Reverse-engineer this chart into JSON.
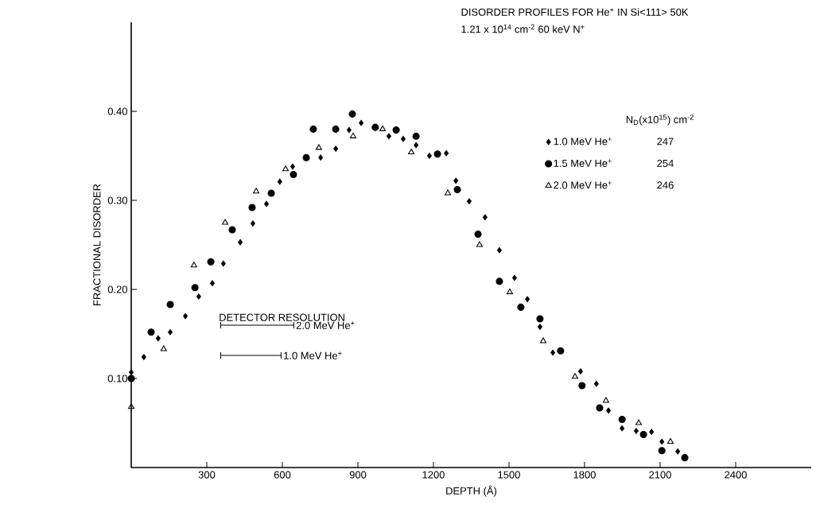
{
  "chart_data": {
    "type": "scatter",
    "title": "DISORDER PROFILES FOR He$^{+}$ IN Si<111> 50K",
    "subtitle": "1.21 x 10$^{14}$ cm$^{-2}$ 60 keV N$^{+}$",
    "xlabel": "DEPTH (Å)",
    "ylabel": "FRACTIONAL DISORDER",
    "legend_title": "N$_{D}$(x10$^{15}$) cm$^{-2}$",
    "legend": "top right",
    "annotations": [
      "DETECTOR RESOLUTION",
      "2.0 MeV He$^{+}$",
      "1.0 MeV He$^{+}$",
      "247",
      "254",
      "246"
    ],
    "xlim": [
      0,
      2700
    ],
    "ylim": [
      0,
      0.5
    ],
    "xticks": [
      300,
      600,
      900,
      1200,
      1500,
      1800,
      2100,
      2400
    ],
    "yticks": [
      {
        "value": 0.1,
        "label": "0.10"
      },
      {
        "value": 0.2,
        "label": "0.20"
      },
      {
        "value": 0.3,
        "label": "0.30"
      },
      {
        "value": 0.4,
        "label": "0.40"
      }
    ],
    "grid": false,
    "series": [
      {
        "name": "1.0 MeV He$^{+}$",
        "color": "#000000",
        "marker": "diamond",
        "x": [
          0,
          50,
          107,
          155,
          215,
          268,
          322,
          366,
          433,
          483,
          537,
          590,
          641,
          752,
          812,
          865,
          913,
          1023,
          1080,
          1131,
          1184,
          1251,
          1289,
          1342,
          1405,
          1462,
          1522,
          1573,
          1623,
          1674,
          1784,
          1847,
          1895,
          1949,
          2005,
          2066,
          2107,
          2170
        ],
        "values": [
          0.107,
          0.124,
          0.145,
          0.152,
          0.17,
          0.192,
          0.207,
          0.229,
          0.253,
          0.274,
          0.296,
          0.321,
          0.338,
          0.348,
          0.358,
          0.379,
          0.387,
          0.372,
          0.369,
          0.362,
          0.35,
          0.353,
          0.322,
          0.299,
          0.281,
          0.244,
          0.213,
          0.189,
          0.158,
          0.129,
          0.108,
          0.094,
          0.064,
          0.044,
          0.041,
          0.04,
          0.029,
          0.018
        ]
      },
      {
        "name": "1.5 MeV He$^{+}$",
        "color": "#000000",
        "marker": "circle",
        "x": [
          0,
          79,
          155,
          253,
          316,
          401,
          480,
          556,
          644,
          695,
          723,
          812,
          878,
          969,
          1052,
          1131,
          1216,
          1295,
          1377,
          1462,
          1547,
          1623,
          1705,
          1790,
          1860,
          1949,
          2034,
          2107,
          2198
        ],
        "values": [
          0.1,
          0.152,
          0.183,
          0.202,
          0.231,
          0.267,
          0.292,
          0.308,
          0.329,
          0.348,
          0.38,
          0.38,
          0.397,
          0.382,
          0.379,
          0.372,
          0.352,
          0.312,
          0.262,
          0.209,
          0.18,
          0.167,
          0.131,
          0.092,
          0.067,
          0.054,
          0.037,
          0.019,
          0.011
        ]
      },
      {
        "name": "2.0 MeV He$^{+}$",
        "color": "#000000",
        "marker": "triangle",
        "x": [
          0,
          129,
          249,
          373,
          496,
          613,
          745,
          881,
          998,
          1112,
          1257,
          1383,
          1503,
          1636,
          1762,
          1885,
          2015,
          2141
        ],
        "values": [
          0.068,
          0.133,
          0.227,
          0.275,
          0.31,
          0.335,
          0.359,
          0.372,
          0.38,
          0.354,
          0.308,
          0.25,
          0.197,
          0.142,
          0.102,
          0.075,
          0.05,
          0.029
        ]
      }
    ]
  }
}
